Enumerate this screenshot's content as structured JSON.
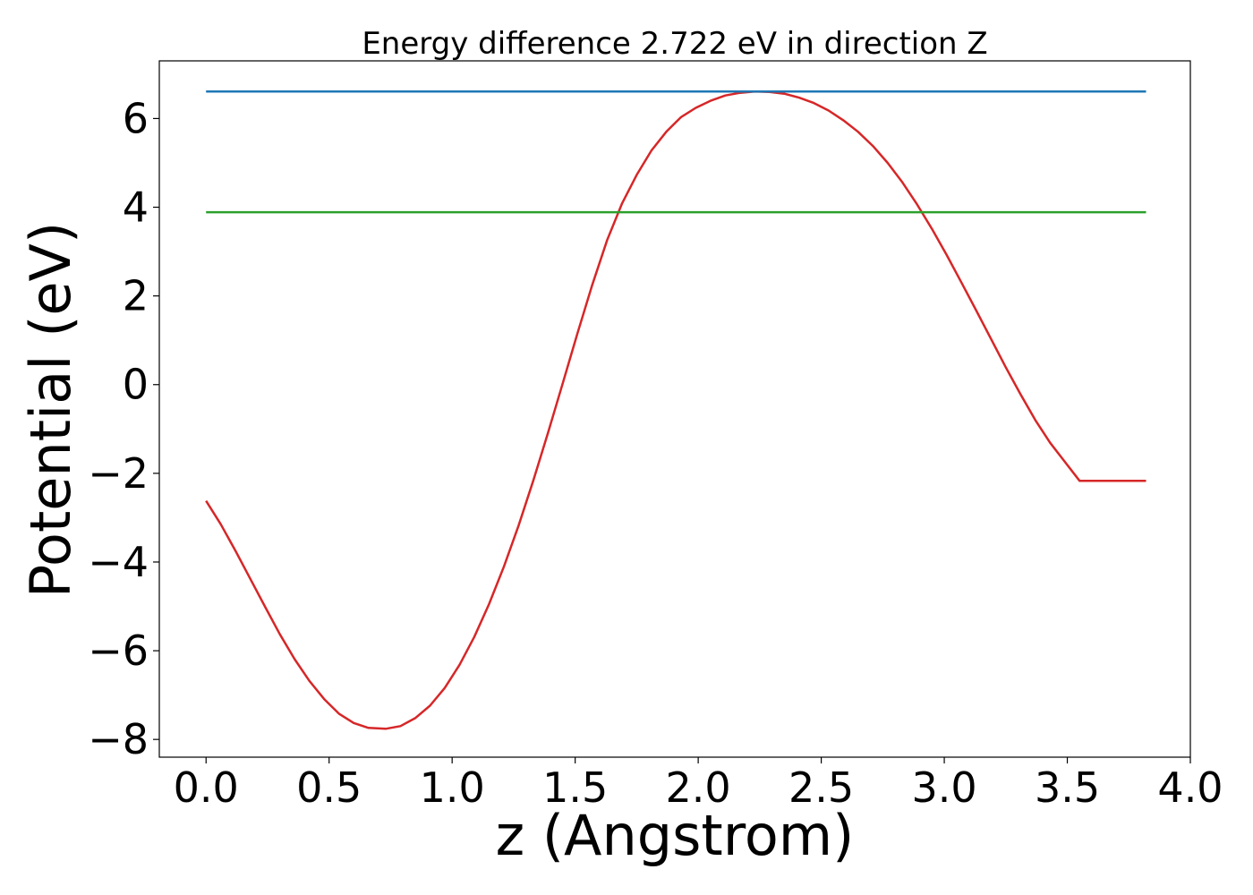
{
  "chart_data": {
    "type": "line",
    "title": "Energy difference 2.722 eV in direction Z",
    "xlabel": "z (Angstrom)",
    "ylabel": "Potential (eV)",
    "xlim": [
      -0.19,
      4.0
    ],
    "ylim": [
      -8.4,
      7.3
    ],
    "xticks": [
      0.0,
      0.5,
      1.0,
      1.5,
      2.0,
      2.5,
      3.0,
      3.5,
      4.0
    ],
    "xtick_labels": [
      "0.0",
      "0.5",
      "1.0",
      "1.5",
      "2.0",
      "2.5",
      "3.0",
      "3.5",
      "4.0"
    ],
    "yticks": [
      -8,
      -6,
      -4,
      -2,
      0,
      2,
      4,
      6
    ],
    "ytick_labels": [
      "−8",
      "−6",
      "−4",
      "−2",
      "0",
      "2",
      "4",
      "6"
    ],
    "grid": false,
    "series": [
      {
        "color": "#d62728",
        "x": [
          0.0,
          0.06,
          0.12,
          0.18,
          0.24,
          0.3,
          0.36,
          0.42,
          0.48,
          0.54,
          0.6,
          0.66,
          0.73,
          0.79,
          0.85,
          0.91,
          0.97,
          1.03,
          1.09,
          1.15,
          1.21,
          1.27,
          1.33,
          1.39,
          1.45,
          1.51,
          1.57,
          1.63,
          1.69,
          1.75,
          1.81,
          1.87,
          1.93,
          1.99,
          2.05,
          2.11,
          2.17,
          2.23,
          2.29,
          2.35,
          2.41,
          2.47,
          2.53,
          2.59,
          2.65,
          2.71,
          2.77,
          2.83,
          2.89,
          2.95,
          3.01,
          3.07,
          3.13,
          3.19,
          3.25,
          3.31,
          3.37,
          3.43,
          3.49,
          3.55,
          3.61,
          3.67,
          3.73,
          3.82
        ],
        "y": [
          -2.62,
          -3.15,
          -3.75,
          -4.38,
          -5.01,
          -5.63,
          -6.19,
          -6.68,
          -7.09,
          -7.42,
          -7.63,
          -7.74,
          -7.76,
          -7.7,
          -7.52,
          -7.24,
          -6.84,
          -6.32,
          -5.69,
          -4.95,
          -4.11,
          -3.18,
          -2.16,
          -1.08,
          0.04,
          1.17,
          2.26,
          3.26,
          4.08,
          4.73,
          5.28,
          5.7,
          6.03,
          6.24,
          6.4,
          6.52,
          6.58,
          6.61,
          6.6,
          6.56,
          6.47,
          6.35,
          6.18,
          5.96,
          5.7,
          5.38,
          5.0,
          4.56,
          4.06,
          3.51,
          2.92,
          2.3,
          1.67,
          1.03,
          0.39,
          -0.22,
          -0.8,
          -1.31,
          -1.74,
          -2.17,
          -2.17,
          -2.17,
          -2.17,
          -2.17
        ]
      },
      {
        "color": "#1f77b4",
        "x": [
          0.0,
          3.82
        ],
        "y": [
          6.61,
          6.61
        ]
      },
      {
        "color": "#2ca02c",
        "x": [
          0.0,
          3.82
        ],
        "y": [
          3.888,
          3.888
        ]
      }
    ]
  }
}
